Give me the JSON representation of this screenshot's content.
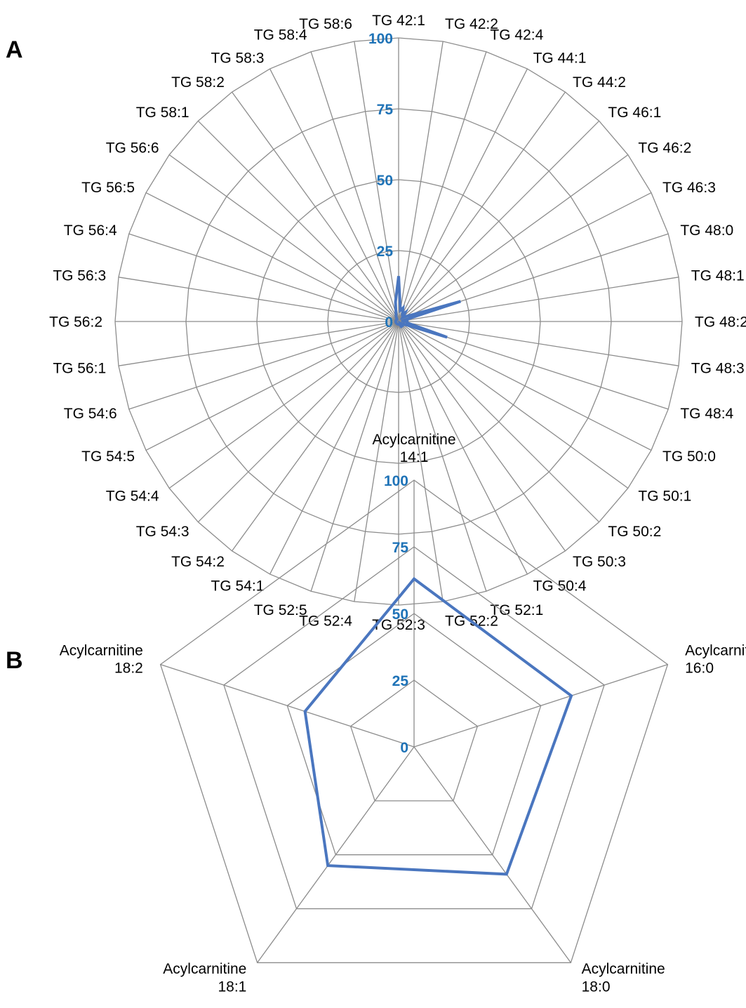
{
  "panels": {
    "a_letter": "A",
    "b_letter": "B"
  },
  "colors": {
    "series": "#4a76bf",
    "tick_labels": "#1f73b7",
    "grid": "#8c8c8c",
    "text": "#000000"
  },
  "chart_data": [
    {
      "panel": "A",
      "type": "radar",
      "categories": [
        "TG 42:1",
        "TG 42:2",
        "TG 42:4",
        "TG 44:1",
        "TG 44:2",
        "TG 46:1",
        "TG 46:2",
        "TG 46:3",
        "TG 48:0",
        "TG 48:1",
        "TG 48:2",
        "TG 48:3",
        "TG 48:4",
        "TG 50:0",
        "TG 50:1",
        "TG 50:2",
        "TG 50:3",
        "TG 50:4",
        "TG 52:1",
        "TG 52:2",
        "TG 52:3",
        "TG 52:4",
        "TG 52:5",
        "TG 54:1",
        "TG 54:2",
        "TG 54:3",
        "TG 54:4",
        "TG 54:5",
        "TG 54:6",
        "TG 56:1",
        "TG 56:2",
        "TG 56:3",
        "TG 56:4",
        "TG 56:5",
        "TG 56:6",
        "TG 58:1",
        "TG 58:2",
        "TG 58:3",
        "TG 58:4",
        "TG 58:6"
      ],
      "series": [
        {
          "values": [
            16,
            4,
            5,
            3,
            4,
            2,
            3,
            5,
            23,
            1,
            3,
            3,
            18,
            2,
            2,
            1,
            2,
            2,
            1,
            1,
            1,
            1,
            1,
            1,
            1,
            1,
            1,
            1,
            1,
            1,
            1,
            1,
            1,
            1,
            1,
            1,
            1,
            2,
            3,
            7
          ]
        }
      ],
      "tick_labels": [
        "0",
        "25",
        "50",
        "75",
        "100"
      ],
      "rlim": [
        0,
        100
      ],
      "grid": true
    },
    {
      "panel": "B",
      "type": "radar",
      "categories": [
        [
          "Acylcarnitine",
          "14:1"
        ],
        [
          "Acylcarnitine",
          "16:0"
        ],
        [
          "Acylcarnitine",
          "18:0"
        ],
        [
          "Acylcarnitine",
          "18:1"
        ],
        [
          "Acylcarnitine",
          "18:2"
        ]
      ],
      "series": [
        {
          "values": [
            63,
            62,
            59,
            55,
            43
          ]
        }
      ],
      "tick_labels": [
        "0",
        "25",
        "50",
        "75",
        "100"
      ],
      "rlim": [
        0,
        100
      ],
      "grid": true
    }
  ]
}
